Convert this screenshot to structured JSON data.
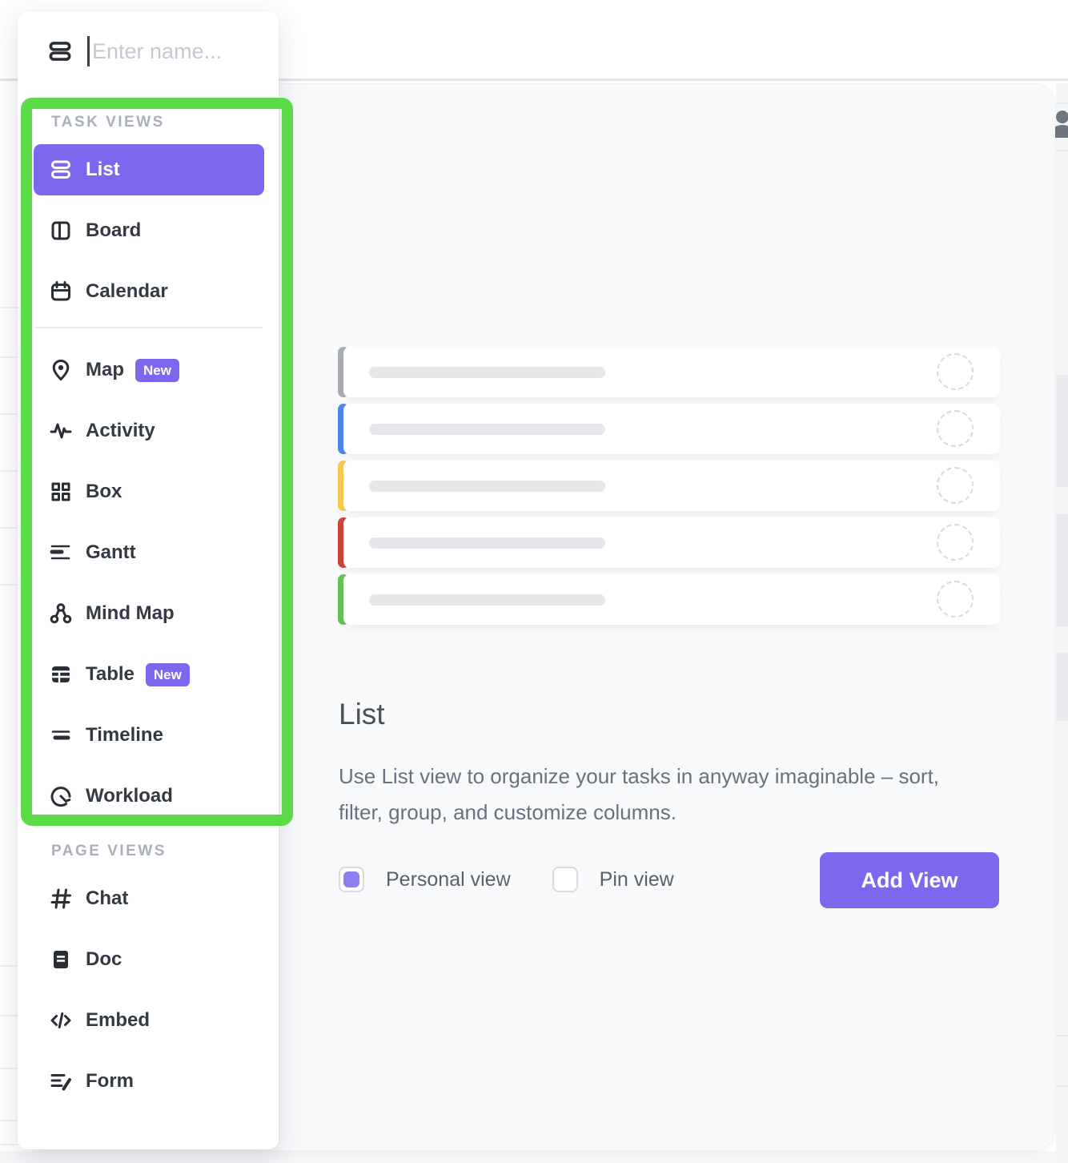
{
  "modal": {
    "search": {
      "placeholder": "Enter name...",
      "icon": "list-icon"
    },
    "sections": [
      {
        "label": "TASK VIEWS",
        "items": [
          {
            "label": "List",
            "icon": "list",
            "selected": true
          },
          {
            "label": "Board",
            "icon": "board"
          },
          {
            "label": "Calendar",
            "icon": "calendar",
            "divider_after": true
          },
          {
            "label": "Map",
            "icon": "map-pin",
            "badge": "New"
          },
          {
            "label": "Activity",
            "icon": "activity"
          },
          {
            "label": "Box",
            "icon": "box-grid"
          },
          {
            "label": "Gantt",
            "icon": "gantt"
          },
          {
            "label": "Mind Map",
            "icon": "mind-map"
          },
          {
            "label": "Table",
            "icon": "table",
            "badge": "New"
          },
          {
            "label": "Timeline",
            "icon": "timeline"
          },
          {
            "label": "Workload",
            "icon": "workload"
          }
        ]
      },
      {
        "label": "PAGE VIEWS",
        "items": [
          {
            "label": "Chat",
            "icon": "hash"
          },
          {
            "label": "Doc",
            "icon": "doc"
          },
          {
            "label": "Embed",
            "icon": "embed"
          },
          {
            "label": "Form",
            "icon": "form"
          }
        ]
      }
    ]
  },
  "preview": {
    "title": "List",
    "description": "Use List view to organize your tasks in anyway imaginable – sort, filter, group, and customize columns.",
    "options": [
      {
        "label": "Personal view",
        "checked": true
      },
      {
        "label": "Pin view",
        "checked": false
      }
    ],
    "add_button_label": "Add View",
    "skeleton_rows": [
      {
        "accent_color": "#A9ACB1"
      },
      {
        "accent_color": "#4C86EA"
      },
      {
        "accent_color": "#F5C84F"
      },
      {
        "accent_color": "#CE4339"
      },
      {
        "accent_color": "#69BE58"
      }
    ]
  },
  "colors": {
    "brand_purple": "#7B68EE",
    "checkbox_fill": "#8D7EF2",
    "highlight_green": "#5CDB49",
    "skeleton_bar": "#E5E7EB",
    "panel_bg": "#F8F9FB"
  }
}
